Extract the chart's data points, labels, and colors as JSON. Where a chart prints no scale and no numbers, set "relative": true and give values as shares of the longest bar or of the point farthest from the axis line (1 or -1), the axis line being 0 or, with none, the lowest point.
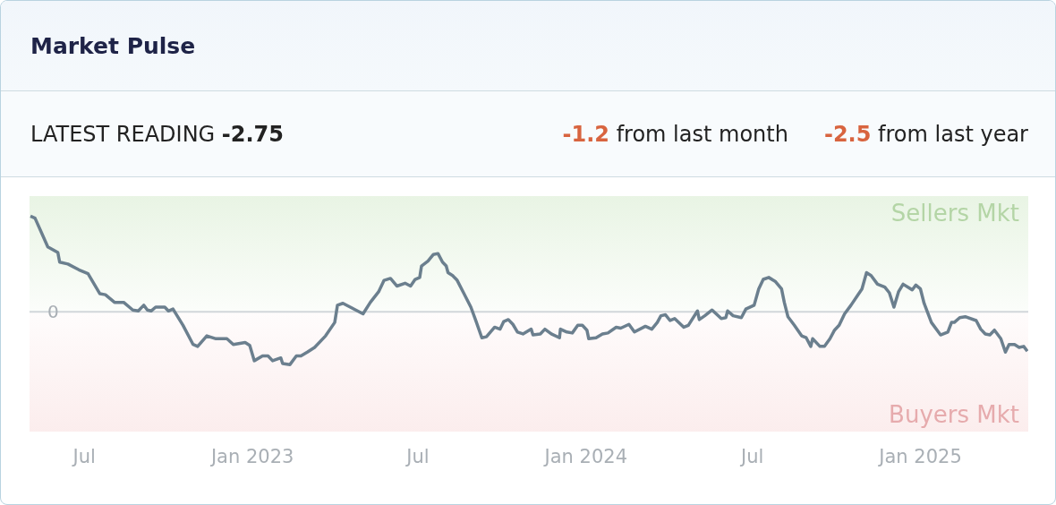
{
  "chart_data": {
    "type": "line",
    "title": "Market Pulse",
    "relative": true,
    "annotations": [
      "LATEST READING",
      "-2.75",
      "-1.2",
      "from last month",
      "-2.5",
      "from last year"
    ],
    "x": [
      "2022-05-03",
      "2022-05-08",
      "2022-05-22",
      "2022-06-02",
      "2022-06-04",
      "2022-06-13",
      "2022-06-25",
      "2022-07-05",
      "2022-07-18",
      "2022-07-24",
      "2022-08-03",
      "2022-08-13",
      "2022-08-23",
      "2022-08-29",
      "2022-09-04",
      "2022-09-08",
      "2022-09-12",
      "2022-09-17",
      "2022-09-27",
      "2022-10-01",
      "2022-10-06",
      "2022-10-17",
      "2022-10-28",
      "2022-11-02",
      "2022-11-12",
      "2022-11-22",
      "2022-12-04",
      "2022-12-11",
      "2022-12-24",
      "2022-12-29",
      "2023-01-03",
      "2023-01-12",
      "2023-01-18",
      "2023-01-23",
      "2023-02-01",
      "2023-02-03",
      "2023-02-11",
      "2023-02-18",
      "2023-02-23",
      "2023-03-02",
      "2023-03-10",
      "2023-03-22",
      "2023-04-01",
      "2023-04-04",
      "2023-04-10",
      "2023-04-18",
      "2023-05-02",
      "2023-05-10",
      "2023-05-19",
      "2023-05-25",
      "2023-06-01",
      "2023-06-08",
      "2023-06-17",
      "2023-06-23",
      "2023-06-28",
      "2023-07-03",
      "2023-07-05",
      "2023-07-12",
      "2023-07-18",
      "2023-07-23",
      "2023-07-28",
      "2023-08-01",
      "2023-08-03",
      "2023-08-08",
      "2023-08-13",
      "2023-08-20",
      "2023-08-28",
      "2023-09-02",
      "2023-09-09",
      "2023-09-14",
      "2023-09-23",
      "2023-09-29",
      "2023-10-03",
      "2023-10-08",
      "2023-10-13",
      "2023-10-18",
      "2023-10-24",
      "2023-11-02",
      "2023-11-04",
      "2023-11-12",
      "2023-11-17",
      "2023-11-24",
      "2023-12-03",
      "2023-12-04",
      "2023-12-11",
      "2023-12-17",
      "2023-12-23",
      "2023-12-28",
      "2024-01-02",
      "2024-01-04",
      "2024-01-12",
      "2024-01-19",
      "2024-01-25",
      "2024-02-03",
      "2024-02-08",
      "2024-02-17",
      "2024-02-23",
      "2024-03-06",
      "2024-03-13",
      "2024-03-19",
      "2024-03-23",
      "2024-03-28",
      "2024-04-02",
      "2024-04-07",
      "2024-04-17",
      "2024-04-22",
      "2024-05-02",
      "2024-05-04",
      "2024-05-10",
      "2024-05-18",
      "2024-05-28",
      "2024-06-02",
      "2024-06-04",
      "2024-06-10",
      "2024-06-19",
      "2024-06-24",
      "2024-07-03",
      "2024-07-08",
      "2024-07-13",
      "2024-07-19",
      "2024-07-26",
      "2024-08-02",
      "2024-08-05",
      "2024-08-09",
      "2024-08-16",
      "2024-08-24",
      "2024-08-29",
      "2024-09-03",
      "2024-09-05",
      "2024-09-13",
      "2024-09-18",
      "2024-09-24",
      "2024-09-29",
      "2024-10-04",
      "2024-10-10",
      "2024-10-17",
      "2024-10-24",
      "2024-10-29",
      "2024-11-03",
      "2024-11-08",
      "2024-11-15",
      "2024-11-23",
      "2024-11-28",
      "2024-12-03",
      "2024-12-08",
      "2024-12-13",
      "2024-12-23",
      "2024-12-27",
      "2025-01-01",
      "2025-01-05",
      "2025-01-13",
      "2025-01-23",
      "2025-01-31",
      "2025-02-04",
      "2025-02-07",
      "2025-02-13",
      "2025-02-19",
      "2025-03-03",
      "2025-03-08",
      "2025-03-13",
      "2025-03-18",
      "2025-03-23",
      "2025-03-30",
      "2025-04-04",
      "2025-04-08",
      "2025-04-14",
      "2025-04-19",
      "2025-04-24",
      "2025-04-28"
    ],
    "series": [
      {
        "color": "#6b7f8e",
        "values": [
          1,
          0.98,
          0.68,
          0.62,
          0.52,
          0.5,
          0.44,
          0.4,
          0.19,
          0.18,
          0.1,
          0.1,
          0.02,
          0.01,
          0.07,
          0.02,
          0.01,
          0.05,
          0.05,
          0.01,
          0.03,
          -0.14,
          -0.34,
          -0.36,
          -0.25,
          -0.28,
          -0.28,
          -0.34,
          -0.32,
          -0.35,
          -0.51,
          -0.46,
          -0.46,
          -0.51,
          -0.48,
          -0.54,
          -0.55,
          -0.46,
          -0.46,
          -0.42,
          -0.37,
          -0.25,
          -0.11,
          0.07,
          0.09,
          0.05,
          -0.02,
          0.1,
          0.21,
          0.33,
          0.35,
          0.27,
          0.3,
          0.27,
          0.34,
          0.36,
          0.48,
          0.53,
          0.6,
          0.61,
          0.52,
          0.48,
          0.41,
          0.38,
          0.33,
          0.2,
          0.05,
          -0.08,
          -0.27,
          -0.26,
          -0.16,
          -0.18,
          -0.1,
          -0.08,
          -0.13,
          -0.21,
          -0.23,
          -0.18,
          -0.24,
          -0.23,
          -0.18,
          -0.23,
          -0.27,
          -0.18,
          -0.21,
          -0.22,
          -0.14,
          -0.14,
          -0.19,
          -0.28,
          -0.27,
          -0.23,
          -0.22,
          -0.16,
          -0.17,
          -0.13,
          -0.21,
          -0.15,
          -0.18,
          -0.11,
          -0.04,
          -0.03,
          -0.09,
          -0.07,
          -0.16,
          -0.14,
          0.01,
          -0.08,
          -0.04,
          0.02,
          -0.07,
          -0.06,
          0.01,
          -0.04,
          -0.06,
          0.03,
          0.07,
          0.24,
          0.34,
          0.36,
          0.32,
          0.24,
          0.1,
          -0.05,
          -0.14,
          -0.25,
          -0.27,
          -0.36,
          -0.28,
          -0.36,
          -0.36,
          -0.28,
          -0.19,
          -0.14,
          -0.02,
          0.07,
          0.17,
          0.24,
          0.41,
          0.38,
          0.29,
          0.26,
          0.2,
          0.05,
          0.21,
          0.29,
          0.23,
          0.28,
          0.24,
          0.09,
          -0.11,
          -0.24,
          -0.21,
          -0.11,
          -0.11,
          -0.06,
          -0.05,
          -0.09,
          -0.18,
          -0.23,
          -0.24,
          -0.19,
          -0.28,
          -0.42,
          -0.34,
          -0.34,
          -0.37,
          -0.36,
          -0.41
        ]
      }
    ],
    "xlim": [
      "2022-05-02",
      "2025-04-29"
    ],
    "xticks": [
      {
        "value": "2022-07-01",
        "label": "Jul"
      },
      {
        "value": "2023-01-01",
        "label": "Jan 2023"
      },
      {
        "value": "2023-07-01",
        "label": "Jul"
      },
      {
        "value": "2024-01-01",
        "label": "Jan 2024"
      },
      {
        "value": "2024-07-01",
        "label": "Jul"
      },
      {
        "value": "2025-01-01",
        "label": "Jan 2025"
      }
    ],
    "ref_lines": [
      {
        "axis": "y",
        "value": 0,
        "label": "0",
        "color": "#d2d6da"
      }
    ],
    "bands": [
      {
        "axis": "y",
        "from": 0,
        "to": 1.21,
        "label": "Sellers Mkt",
        "color": "#e6f3e1"
      },
      {
        "axis": "y",
        "from": -1.25,
        "to": 0,
        "label": "Buyers Mkt",
        "color": "#fbebeb"
      }
    ],
    "grid": false,
    "legend": false,
    "marker": "none",
    "line_style": "solid"
  }
}
